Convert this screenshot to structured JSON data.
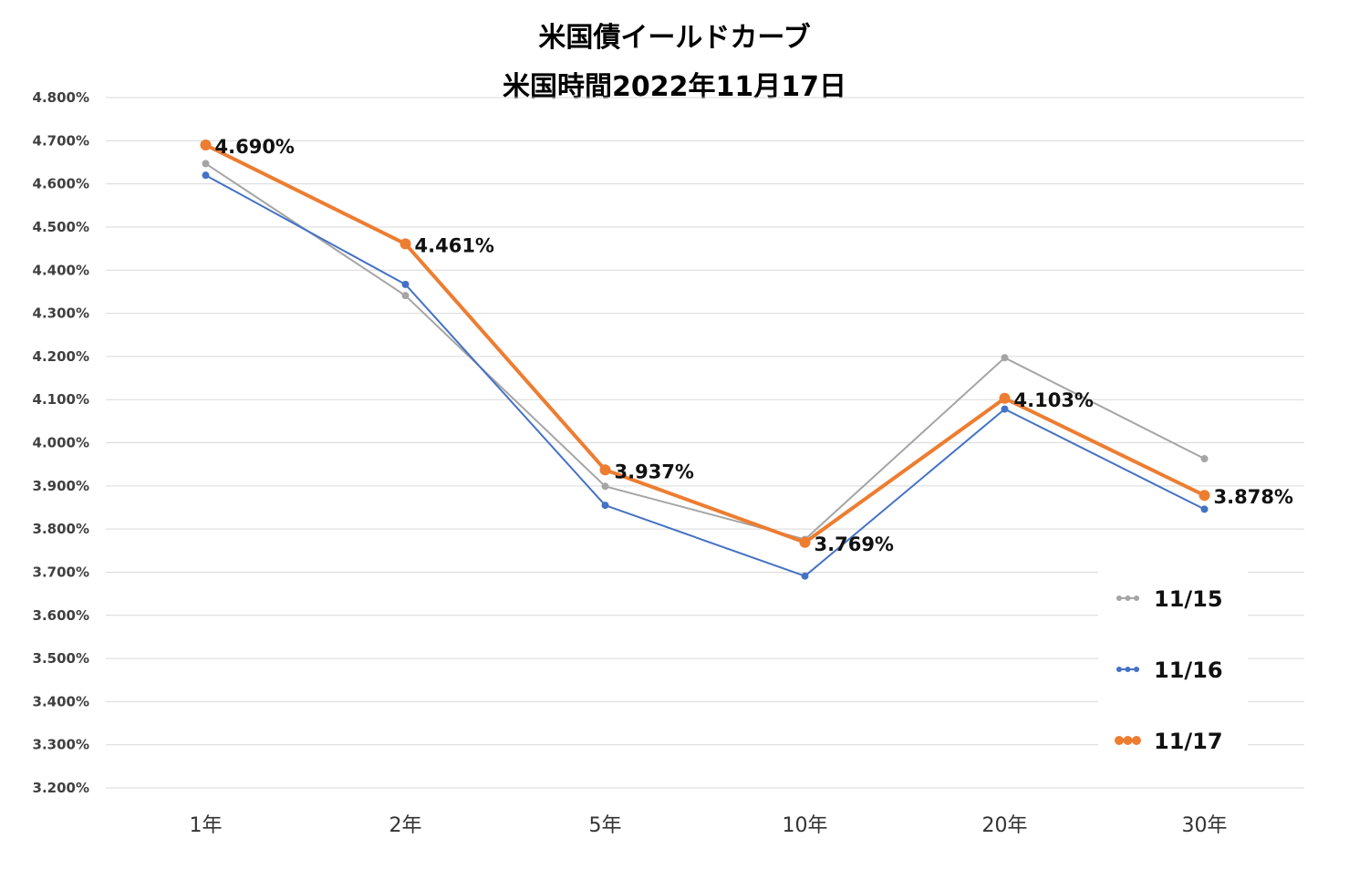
{
  "chart_data": {
    "type": "line",
    "title": "米国債イールドカーブ",
    "subtitle": "米国時間2022年11月17日",
    "categories": [
      "1年",
      "2年",
      "5年",
      "10年",
      "20年",
      "30年"
    ],
    "ylim": [
      3.2,
      4.8
    ],
    "ystep": 0.1,
    "ytick_format": "%.3f%",
    "grid": true,
    "legend_position": "bottom-right",
    "series": [
      {
        "name": "11/15",
        "color": "#A5A5A5",
        "values": [
          4.647,
          4.341,
          3.899,
          3.776,
          4.197,
          3.963
        ]
      },
      {
        "name": "11/16",
        "color": "#4472C4",
        "values": [
          4.62,
          4.367,
          3.855,
          3.691,
          4.078,
          3.846
        ]
      },
      {
        "name": "11/17",
        "color": "#ED7D31",
        "values": [
          4.69,
          4.461,
          3.937,
          3.769,
          4.103,
          3.878
        ],
        "data_labels": [
          "4.690%",
          "4.461%",
          "3.937%",
          "3.769%",
          "4.103%",
          "3.878%"
        ]
      }
    ]
  }
}
